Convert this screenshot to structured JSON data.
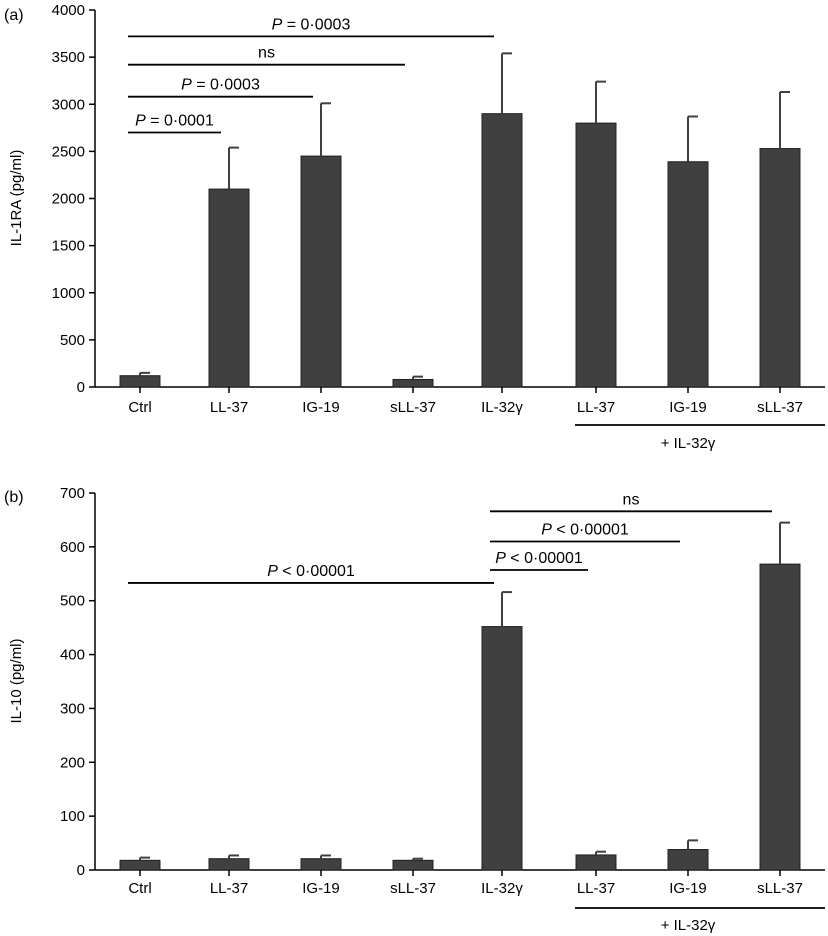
{
  "chart_data": [
    {
      "type": "bar",
      "panel_label": "(a)",
      "ylabel": "IL-1RA (pg/ml)",
      "ylim": [
        0,
        4000
      ],
      "yticks": [
        0,
        500,
        1000,
        1500,
        2000,
        2500,
        3000,
        3500,
        4000
      ],
      "categories": [
        "Ctrl",
        "LL-37",
        "IG-19",
        "sLL-37",
        "IL-32γ",
        "LL-37",
        "IG-19",
        "sLL-37"
      ],
      "values": [
        120,
        2100,
        2450,
        80,
        2900,
        2800,
        2390,
        2530
      ],
      "errors": [
        30,
        440,
        560,
        30,
        640,
        440,
        480,
        600
      ],
      "group_label": "+ IL-32γ",
      "comparisons": [
        {
          "italic": "P",
          "rest": " = 0·0001",
          "from": 0,
          "to": 1,
          "y": 2700
        },
        {
          "italic": "P",
          "rest": " = 0·0003",
          "from": 0,
          "to": 2,
          "y": 3080
        },
        {
          "italic": "",
          "rest": "ns",
          "from": 0,
          "to": 3,
          "y": 3420
        },
        {
          "italic": "P",
          "rest": " = 0·0003",
          "from": 0,
          "to": 4,
          "y": 3720
        }
      ]
    },
    {
      "type": "bar",
      "panel_label": "(b)",
      "ylabel": "IL-10 (pg/ml)",
      "ylim": [
        0,
        700
      ],
      "yticks": [
        0,
        100,
        200,
        300,
        400,
        500,
        600,
        700
      ],
      "categories": [
        "Ctrl",
        "LL-37",
        "IG-19",
        "sLL-37",
        "IL-32γ",
        "LL-37",
        "IG-19",
        "sLL-37"
      ],
      "values": [
        18,
        21,
        21,
        18,
        452,
        28,
        38,
        568
      ],
      "errors": [
        5,
        6,
        6,
        3,
        64,
        6,
        17,
        77
      ],
      "group_label": "+ IL-32γ",
      "comparisons": [
        {
          "italic": "P",
          "rest": " < 0·00001",
          "from": 0,
          "to": 4,
          "y": 533
        },
        {
          "italic": "P",
          "rest": " < 0·00001",
          "from": 4,
          "to": 5,
          "y": 557
        },
        {
          "italic": "P",
          "rest": " < 0·00001",
          "from": 4,
          "to": 6,
          "y": 610
        },
        {
          "italic": "",
          "rest": "ns",
          "from": 4,
          "to": 7,
          "y": 666
        }
      ]
    }
  ]
}
